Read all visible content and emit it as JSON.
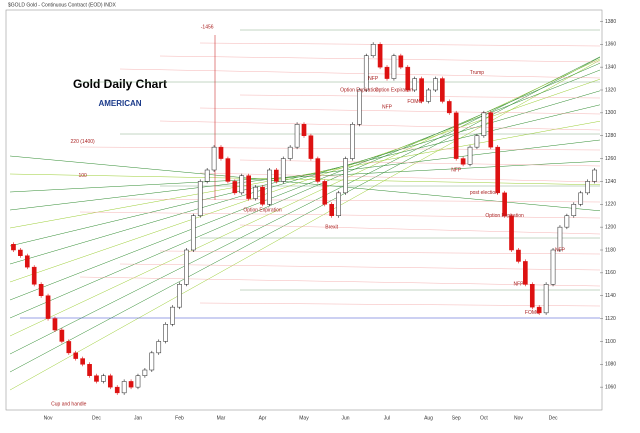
{
  "chart_data": {
    "type": "candlestick",
    "title": "Gold Daily Chart",
    "subtitle": "$GOLD Gold - Continuous Contract (EOD) INDX",
    "logo": "AMERICAN",
    "up_color": "#222222",
    "down_color": "#dd1111",
    "ylim": [
      1040,
      1390
    ],
    "yticks": [
      1060,
      1080,
      1100,
      1120,
      1140,
      1160,
      1180,
      1200,
      1220,
      1240,
      1260,
      1280,
      1300,
      1320,
      1340,
      1360,
      1380
    ],
    "categories": [
      null,
      null,
      null,
      null,
      null,
      "Nov",
      null,
      null,
      null,
      null,
      null,
      null,
      "Dec",
      null,
      null,
      null,
      null,
      null,
      "Jan",
      null,
      null,
      null,
      null,
      null,
      "Feb",
      null,
      null,
      null,
      null,
      null,
      "Mar",
      null,
      null,
      null,
      null,
      null,
      "Apr",
      null,
      null,
      null,
      null,
      null,
      "May",
      null,
      null,
      null,
      null,
      null,
      "Jun",
      null,
      null,
      null,
      null,
      null,
      "Jul",
      null,
      null,
      null,
      null,
      null,
      "Aug",
      null,
      null,
      null,
      "Sep",
      null,
      null,
      null,
      "Oct",
      null,
      null,
      null,
      null,
      "Nov",
      null,
      null,
      null,
      null,
      "Dec",
      null,
      null,
      null,
      null,
      null,
      null
    ],
    "open": [
      1185,
      1180,
      1175,
      1165,
      1150,
      1140,
      1120,
      1110,
      1100,
      1090,
      1085,
      1080,
      1070,
      1065,
      1070,
      1060,
      1055,
      1065,
      1060,
      1070,
      1075,
      1090,
      1100,
      1115,
      1130,
      1150,
      1180,
      1210,
      1240,
      1250,
      1270,
      1260,
      1240,
      1230,
      1245,
      1225,
      1235,
      1220,
      1250,
      1240,
      1260,
      1270,
      1290,
      1280,
      1260,
      1240,
      1220,
      1210,
      1230,
      1260,
      1290,
      1320,
      1350,
      1360,
      1340,
      1330,
      1350,
      1340,
      1320,
      1330,
      1310,
      1320,
      1330,
      1310,
      1300,
      1260,
      1255,
      1270,
      1280,
      1300,
      1270,
      1230,
      1210,
      1180,
      1170,
      1150,
      1130,
      1125,
      1150,
      1180,
      1200,
      1210,
      1220,
      1230,
      1240
    ],
    "close": [
      1180,
      1175,
      1165,
      1150,
      1140,
      1120,
      1110,
      1100,
      1090,
      1085,
      1080,
      1070,
      1065,
      1070,
      1060,
      1055,
      1065,
      1060,
      1070,
      1075,
      1090,
      1100,
      1115,
      1130,
      1150,
      1180,
      1210,
      1240,
      1250,
      1270,
      1260,
      1240,
      1230,
      1245,
      1225,
      1235,
      1220,
      1250,
      1240,
      1260,
      1270,
      1290,
      1280,
      1260,
      1240,
      1220,
      1210,
      1230,
      1260,
      1290,
      1320,
      1350,
      1360,
      1340,
      1330,
      1350,
      1340,
      1320,
      1330,
      1310,
      1320,
      1330,
      1310,
      1300,
      1260,
      1255,
      1270,
      1280,
      1300,
      1270,
      1230,
      1210,
      1180,
      1170,
      1150,
      1130,
      1125,
      1150,
      1180,
      1200,
      1210,
      1220,
      1230,
      1240,
      1250
    ],
    "annotations": [
      {
        "text": "-1456",
        "index": 28,
        "price": 1375
      },
      {
        "text": "220 (1400)",
        "index": 10,
        "price": 1275
      },
      {
        "text": "100",
        "index": 10,
        "price": 1245
      },
      {
        "text": "Cup and handle",
        "index": 8,
        "price": 1045
      },
      {
        "text": "Option Expiration",
        "index": 36,
        "price": 1215
      },
      {
        "text": "Brexit",
        "index": 46,
        "price": 1200
      },
      {
        "text": "NFP",
        "index": 52,
        "price": 1330
      },
      {
        "text": "Option Expiration",
        "index": 50,
        "price": 1320
      },
      {
        "text": "Option Expiration",
        "index": 55,
        "price": 1320
      },
      {
        "text": "FOMC",
        "index": 58,
        "price": 1310
      },
      {
        "text": "NFP",
        "index": 54,
        "price": 1305
      },
      {
        "text": "Trump",
        "index": 67,
        "price": 1335
      },
      {
        "text": "NFP",
        "index": 64,
        "price": 1250
      },
      {
        "text": "post election",
        "index": 68,
        "price": 1230
      },
      {
        "text": "Option Expiration",
        "index": 71,
        "price": 1210
      },
      {
        "text": "NFP",
        "index": 73,
        "price": 1150
      },
      {
        "text": "FOMC",
        "index": 75,
        "price": 1125
      },
      {
        "text": "NFP",
        "index": 79,
        "price": 1180
      }
    ]
  }
}
